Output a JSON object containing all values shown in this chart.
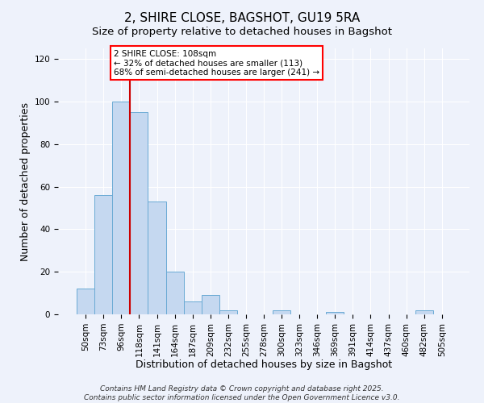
{
  "title": "2, SHIRE CLOSE, BAGSHOT, GU19 5RA",
  "subtitle": "Size of property relative to detached houses in Bagshot",
  "xlabel": "Distribution of detached houses by size in Bagshot",
  "ylabel": "Number of detached properties",
  "categories": [
    "50sqm",
    "73sqm",
    "96sqm",
    "118sqm",
    "141sqm",
    "164sqm",
    "187sqm",
    "209sqm",
    "232sqm",
    "255sqm",
    "278sqm",
    "300sqm",
    "323sqm",
    "346sqm",
    "369sqm",
    "391sqm",
    "414sqm",
    "437sqm",
    "460sqm",
    "482sqm",
    "505sqm"
  ],
  "values": [
    12,
    56,
    100,
    95,
    53,
    20,
    6,
    9,
    2,
    0,
    0,
    2,
    0,
    0,
    1,
    0,
    0,
    0,
    0,
    2,
    0
  ],
  "bar_color": "#c5d8f0",
  "bar_edge_color": "#6aaad4",
  "vline_color": "#cc0000",
  "ylim": [
    0,
    125
  ],
  "yticks": [
    0,
    20,
    40,
    60,
    80,
    100,
    120
  ],
  "annotation_title": "2 SHIRE CLOSE: 108sqm",
  "annotation_line1": "← 32% of detached houses are smaller (113)",
  "annotation_line2": "68% of semi-detached houses are larger (241) →",
  "footer1": "Contains HM Land Registry data © Crown copyright and database right 2025.",
  "footer2": "Contains public sector information licensed under the Open Government Licence v3.0.",
  "background_color": "#eef2fb",
  "grid_color": "#ffffff",
  "title_fontsize": 11,
  "subtitle_fontsize": 9.5,
  "axis_label_fontsize": 9,
  "tick_fontsize": 7.5,
  "annotation_fontsize": 7.5,
  "footer_fontsize": 6.5
}
